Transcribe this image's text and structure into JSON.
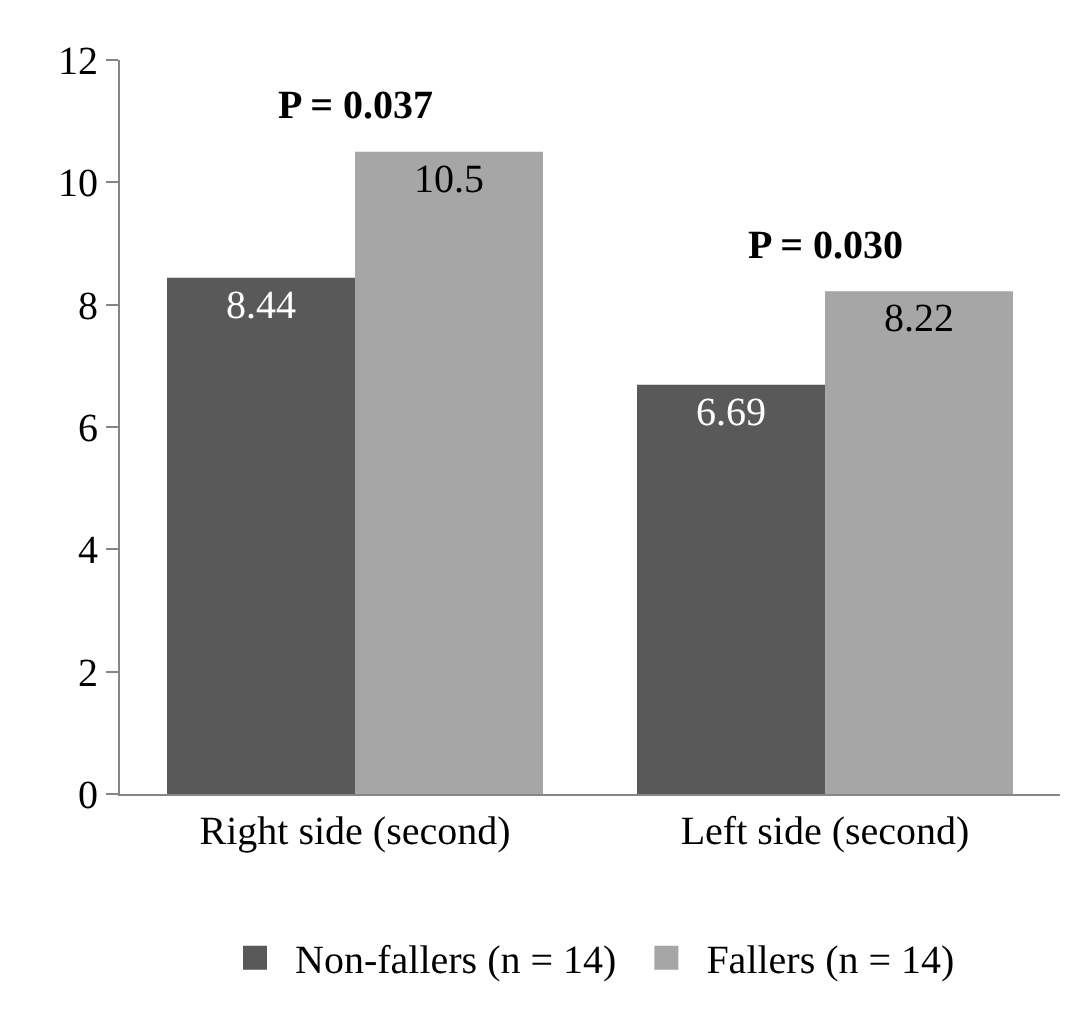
{
  "chart_data": {
    "type": "bar",
    "categories": [
      "Right side (second)",
      "Left side (second)"
    ],
    "series": [
      {
        "name": "Non-fallers (n = 14)",
        "color": "#595959",
        "values": [
          8.44,
          6.69
        ]
      },
      {
        "name": "Fallers (n = 14)",
        "color": "#a6a6a6",
        "values": [
          10.5,
          8.22
        ]
      }
    ],
    "ylim": [
      0,
      12
    ],
    "yticks": [
      0,
      2,
      4,
      6,
      8,
      10,
      12
    ],
    "grid": false,
    "legend": "bottom",
    "data_labels": true,
    "annotations": [
      "P = 0.037",
      "P = 0.030"
    ]
  }
}
